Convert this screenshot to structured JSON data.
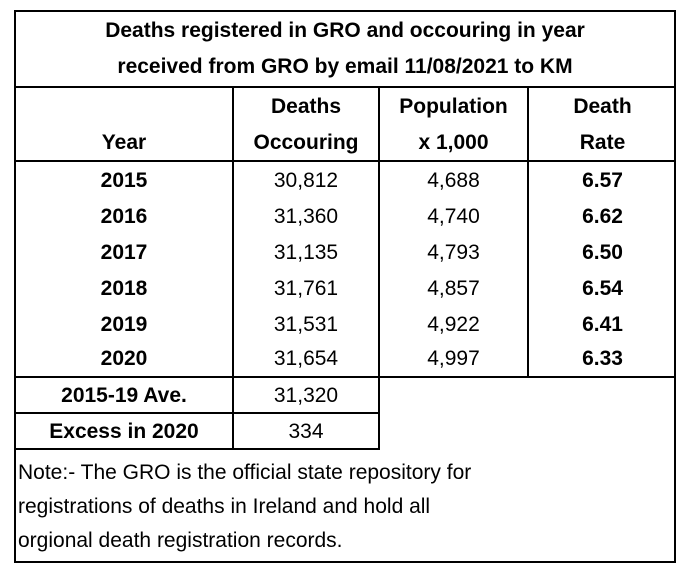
{
  "title_lines": [
    "Deaths registered in GRO and occouring in year",
    "received from GRO by email 11/08/2021 to KM"
  ],
  "headers": {
    "year": "Year",
    "deaths": [
      "Deaths",
      "Occouring"
    ],
    "population": [
      "Population",
      "x 1,000"
    ],
    "rate": [
      "Death",
      "Rate"
    ]
  },
  "rows": [
    {
      "year": "2015",
      "deaths": "30,812",
      "population": "4,688",
      "rate": "6.57"
    },
    {
      "year": "2016",
      "deaths": "31,360",
      "population": "4,740",
      "rate": "6.62"
    },
    {
      "year": "2017",
      "deaths": "31,135",
      "population": "4,793",
      "rate": "6.50"
    },
    {
      "year": "2018",
      "deaths": "31,761",
      "population": "4,857",
      "rate": "6.54"
    },
    {
      "year": "2019",
      "deaths": "31,531",
      "population": "4,922",
      "rate": "6.41"
    },
    {
      "year": "2020",
      "deaths": "31,654",
      "population": "4,997",
      "rate": "6.33"
    }
  ],
  "summary": [
    {
      "label": "2015-19 Ave.",
      "value": "31,320"
    },
    {
      "label": "Excess in 2020",
      "value": "334"
    }
  ],
  "note_lines": [
    "Note:- The GRO is the official state repository for",
    "registrations of deaths in Ireland and hold all",
    "orgional death registration records."
  ]
}
